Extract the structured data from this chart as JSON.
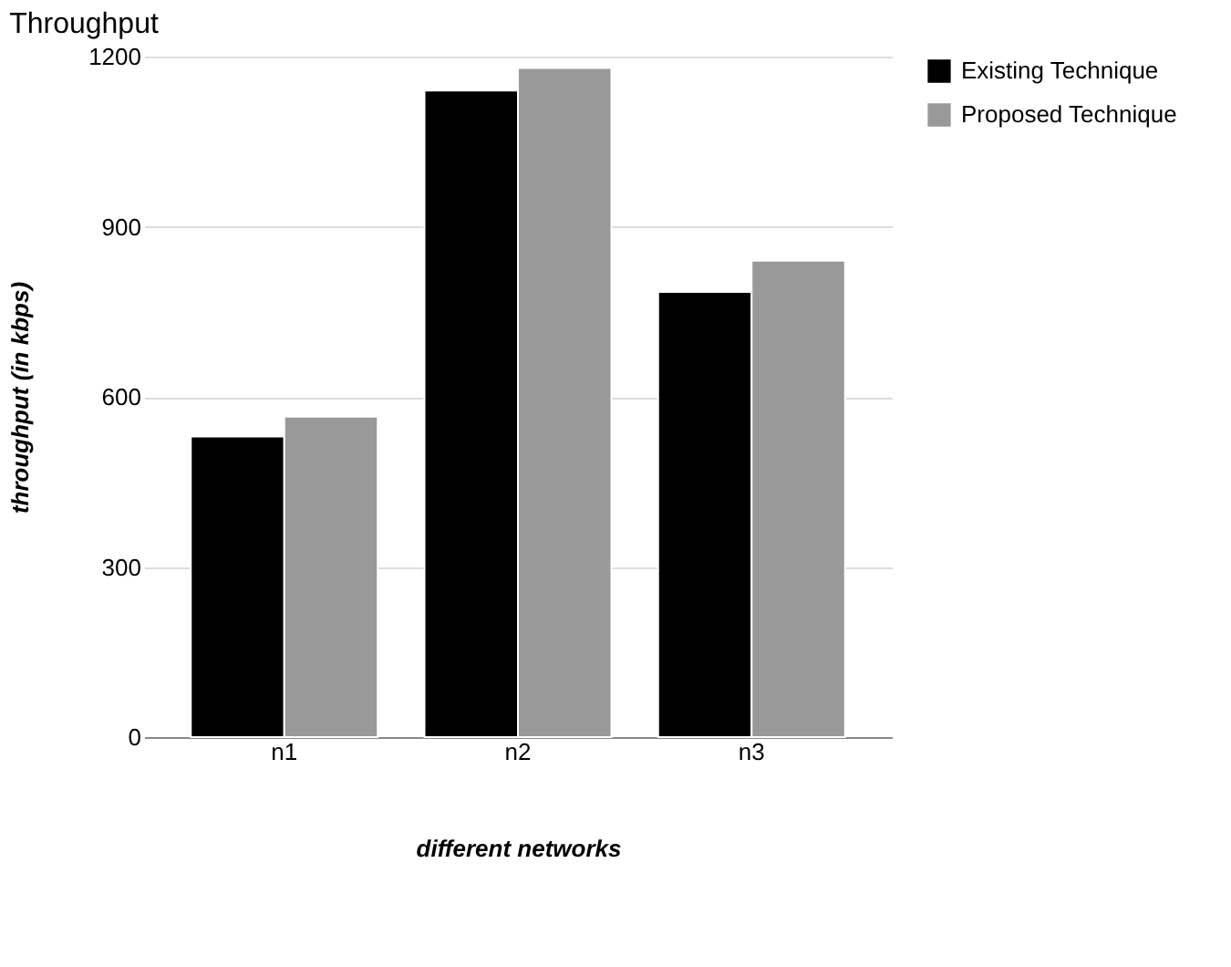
{
  "chart_data": {
    "type": "bar",
    "title": "Throughput",
    "xlabel": "different networks",
    "ylabel": "throughput (in kbps)",
    "categories": [
      "n1",
      "n2",
      "n3"
    ],
    "series": [
      {
        "name": "Existing Technique",
        "color": "#000000",
        "values": [
          530,
          1140,
          785
        ]
      },
      {
        "name": "Proposed Technique",
        "color": "#999999",
        "values": [
          565,
          1180,
          840
        ]
      }
    ],
    "ylim": [
      0,
      1200
    ],
    "yticks": [
      0,
      300,
      600,
      900,
      1200
    ],
    "grid": "y",
    "legend": "top right"
  }
}
